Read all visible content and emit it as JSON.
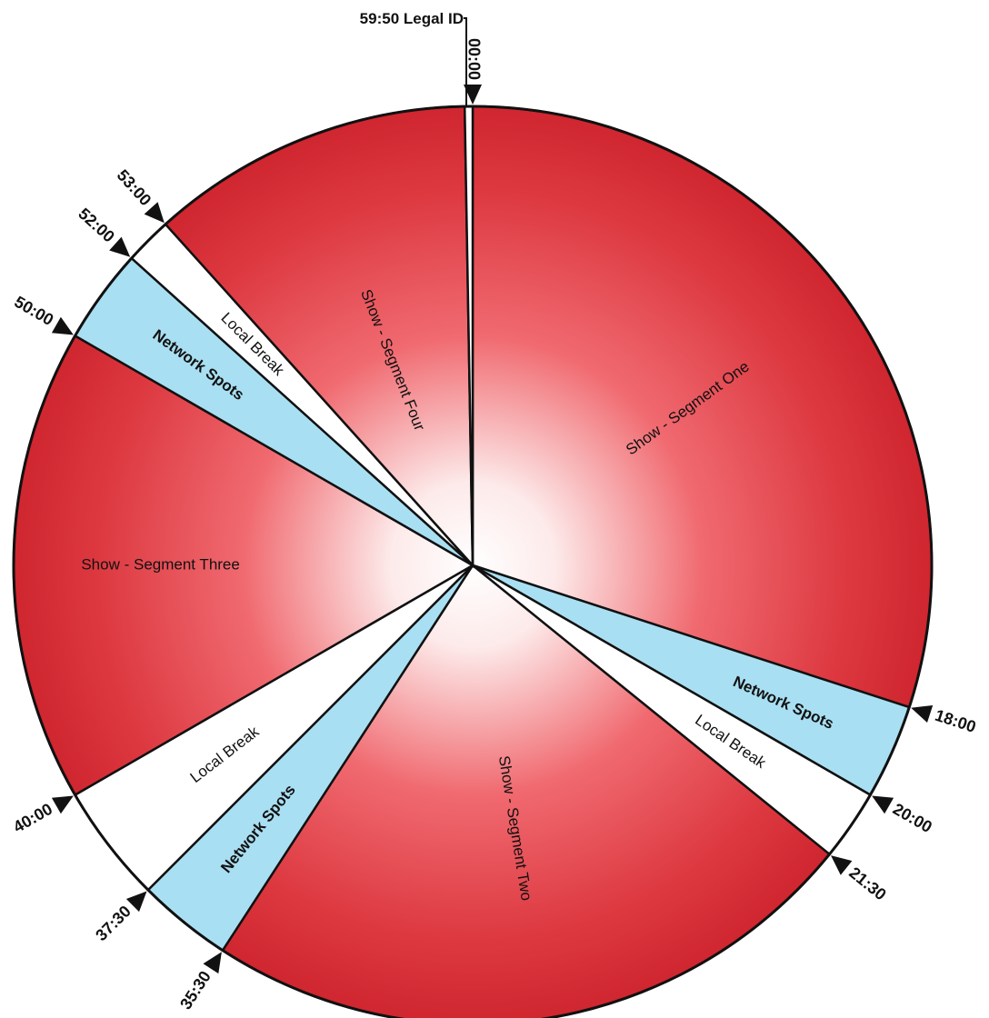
{
  "chart_data": {
    "type": "pie",
    "title": "",
    "unit": "minutes",
    "segments": [
      {
        "label": "Show - Segment One",
        "start": "00:00",
        "end": "18:00",
        "kind": "show"
      },
      {
        "label": "Network Spots",
        "start": "18:00",
        "end": "20:00",
        "kind": "network"
      },
      {
        "label": "Local Break",
        "start": "20:00",
        "end": "21:30",
        "kind": "local"
      },
      {
        "label": "Show - Segment Two",
        "start": "21:30",
        "end": "35:30",
        "kind": "show"
      },
      {
        "label": "Network Spots",
        "start": "35:30",
        "end": "37:30",
        "kind": "network"
      },
      {
        "label": "Local Break",
        "start": "37:30",
        "end": "40:00",
        "kind": "local"
      },
      {
        "label": "Show - Segment Three",
        "start": "40:00",
        "end": "50:00",
        "kind": "show"
      },
      {
        "label": "Network Spots",
        "start": "50:00",
        "end": "52:00",
        "kind": "network"
      },
      {
        "label": "Local Break",
        "start": "52:00",
        "end": "53:00",
        "kind": "local"
      },
      {
        "label": "Show - Segment Four",
        "start": "53:00",
        "end": "59:50",
        "kind": "show"
      },
      {
        "label": "Legal ID",
        "start": "59:50",
        "end": "60:00",
        "kind": "legal"
      }
    ],
    "ticks": [
      "00:00",
      "18:00",
      "20:00",
      "21:30",
      "35:30",
      "37:30",
      "40:00",
      "50:00",
      "52:00",
      "53:00"
    ],
    "legal_id_label": "59:50 Legal ID",
    "colors": {
      "show_center": "#ffffff",
      "show_edge": "#d42a34",
      "network": "#a9dff2",
      "local": "#ffffff",
      "legal": "#ffffff",
      "outline": "#111111"
    }
  }
}
